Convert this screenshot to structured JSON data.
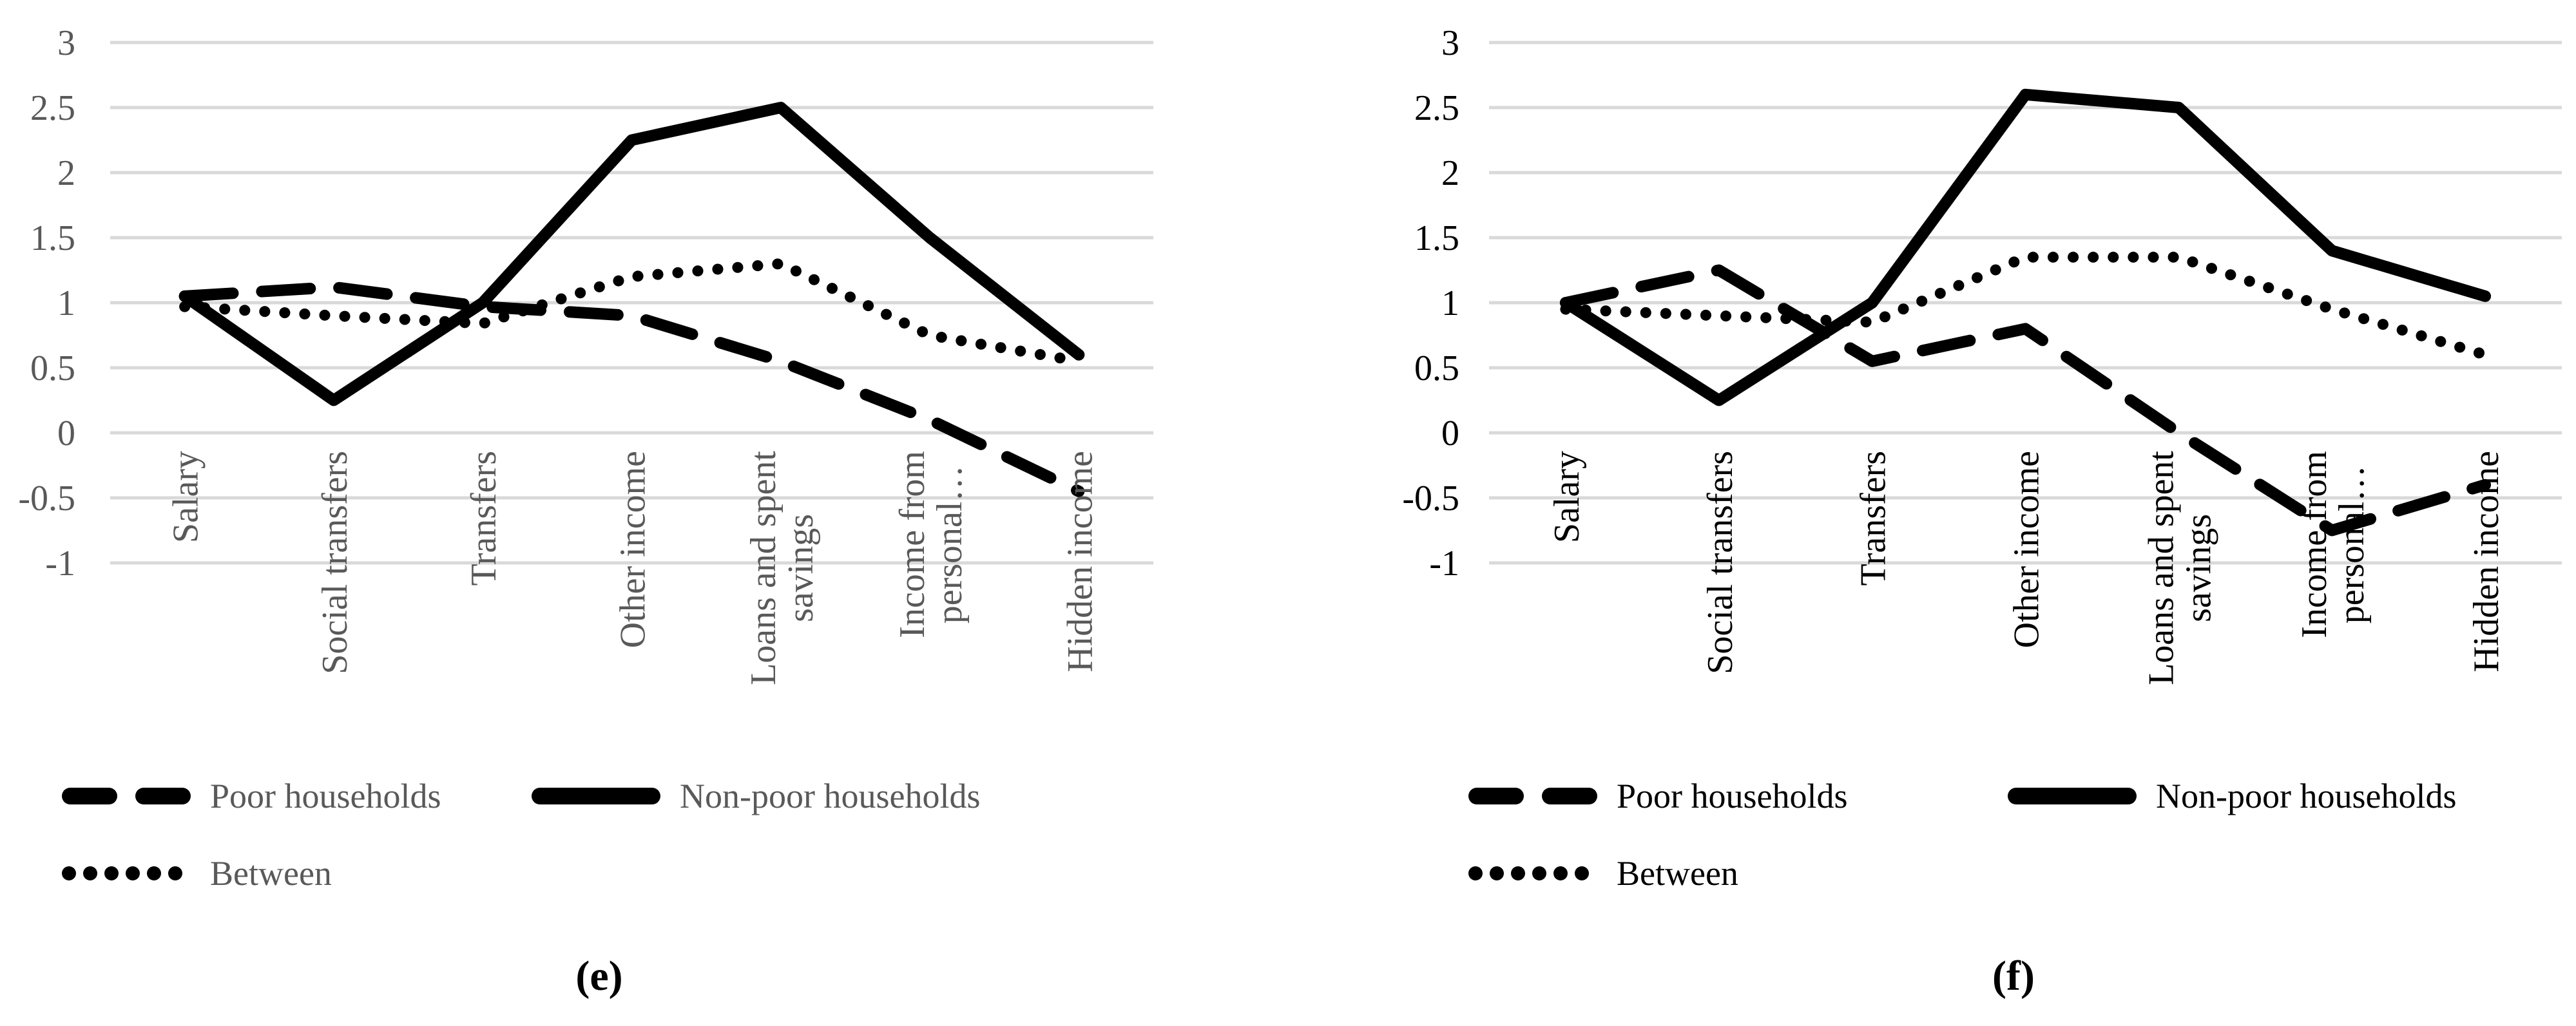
{
  "figure": {
    "background": "#ffffff",
    "grid_color": "#d9d9d9",
    "line_color": "#000000"
  },
  "charts": [
    {
      "caption": "(e)",
      "text_color": "#595959"
    },
    {
      "caption": "(f)",
      "text_color": "#000000"
    }
  ],
  "chart_data": [
    {
      "type": "line",
      "panel": "(e)",
      "title": "",
      "xlabel": "",
      "ylabel": "",
      "ylim": [
        -1,
        3
      ],
      "ytick_step": 0.5,
      "grid": true,
      "legend_position": "bottom-left",
      "yticks": [
        "3",
        "2.5",
        "2",
        "1.5",
        "1",
        "0.5",
        "0",
        "-0.5",
        "-1"
      ],
      "categories": [
        "Salary",
        "Social transfers",
        "Transfers",
        "Other income",
        "Loans and spent savings",
        "Income from personal…",
        "Hidden income"
      ],
      "label_lines": [
        [
          "Salary"
        ],
        [
          "Social transfers"
        ],
        [
          "Transfers"
        ],
        [
          "Other income"
        ],
        [
          "Loans and spent",
          "savings"
        ],
        [
          "Income from",
          "personal…"
        ],
        [
          "Hidden income"
        ]
      ],
      "series": [
        {
          "name": "Poor households",
          "style": "dashed",
          "values": [
            1.05,
            1.12,
            0.97,
            0.9,
            0.55,
            0.1,
            -0.45
          ]
        },
        {
          "name": "Non-poor households",
          "style": "solid",
          "values": [
            1.05,
            0.25,
            1.0,
            2.25,
            2.5,
            1.5,
            0.6
          ]
        },
        {
          "name": "Between",
          "style": "dotted",
          "values": [
            0.97,
            0.9,
            0.84,
            1.2,
            1.3,
            0.75,
            0.55
          ]
        }
      ]
    },
    {
      "type": "line",
      "panel": "(f)",
      "title": "",
      "xlabel": "",
      "ylabel": "",
      "ylim": [
        -1,
        3
      ],
      "ytick_step": 0.5,
      "grid": true,
      "legend_position": "bottom-left",
      "yticks": [
        "3",
        "2.5",
        "2",
        "1.5",
        "1",
        "0.5",
        "0",
        "-0.5",
        "-1"
      ],
      "categories": [
        "Salary",
        "Social transfers",
        "Transfers",
        "Other income",
        "Loans and spent savings",
        "Income from personal…",
        "Hidden income"
      ],
      "label_lines": [
        [
          "Salary"
        ],
        [
          "Social transfers"
        ],
        [
          "Transfers"
        ],
        [
          "Other income"
        ],
        [
          "Loans and spent",
          "savings"
        ],
        [
          "Income from",
          "personal…"
        ],
        [
          "Hidden income"
        ]
      ],
      "series": [
        {
          "name": "Poor households",
          "style": "dashed",
          "values": [
            1.0,
            1.25,
            0.55,
            0.8,
            0.0,
            -0.75,
            -0.4
          ]
        },
        {
          "name": "Non-poor households",
          "style": "solid",
          "values": [
            1.0,
            0.25,
            1.0,
            2.6,
            2.5,
            1.4,
            1.05
          ]
        },
        {
          "name": "Between",
          "style": "dotted",
          "values": [
            0.95,
            0.9,
            0.85,
            1.35,
            1.35,
            0.95,
            0.6
          ]
        }
      ]
    }
  ]
}
